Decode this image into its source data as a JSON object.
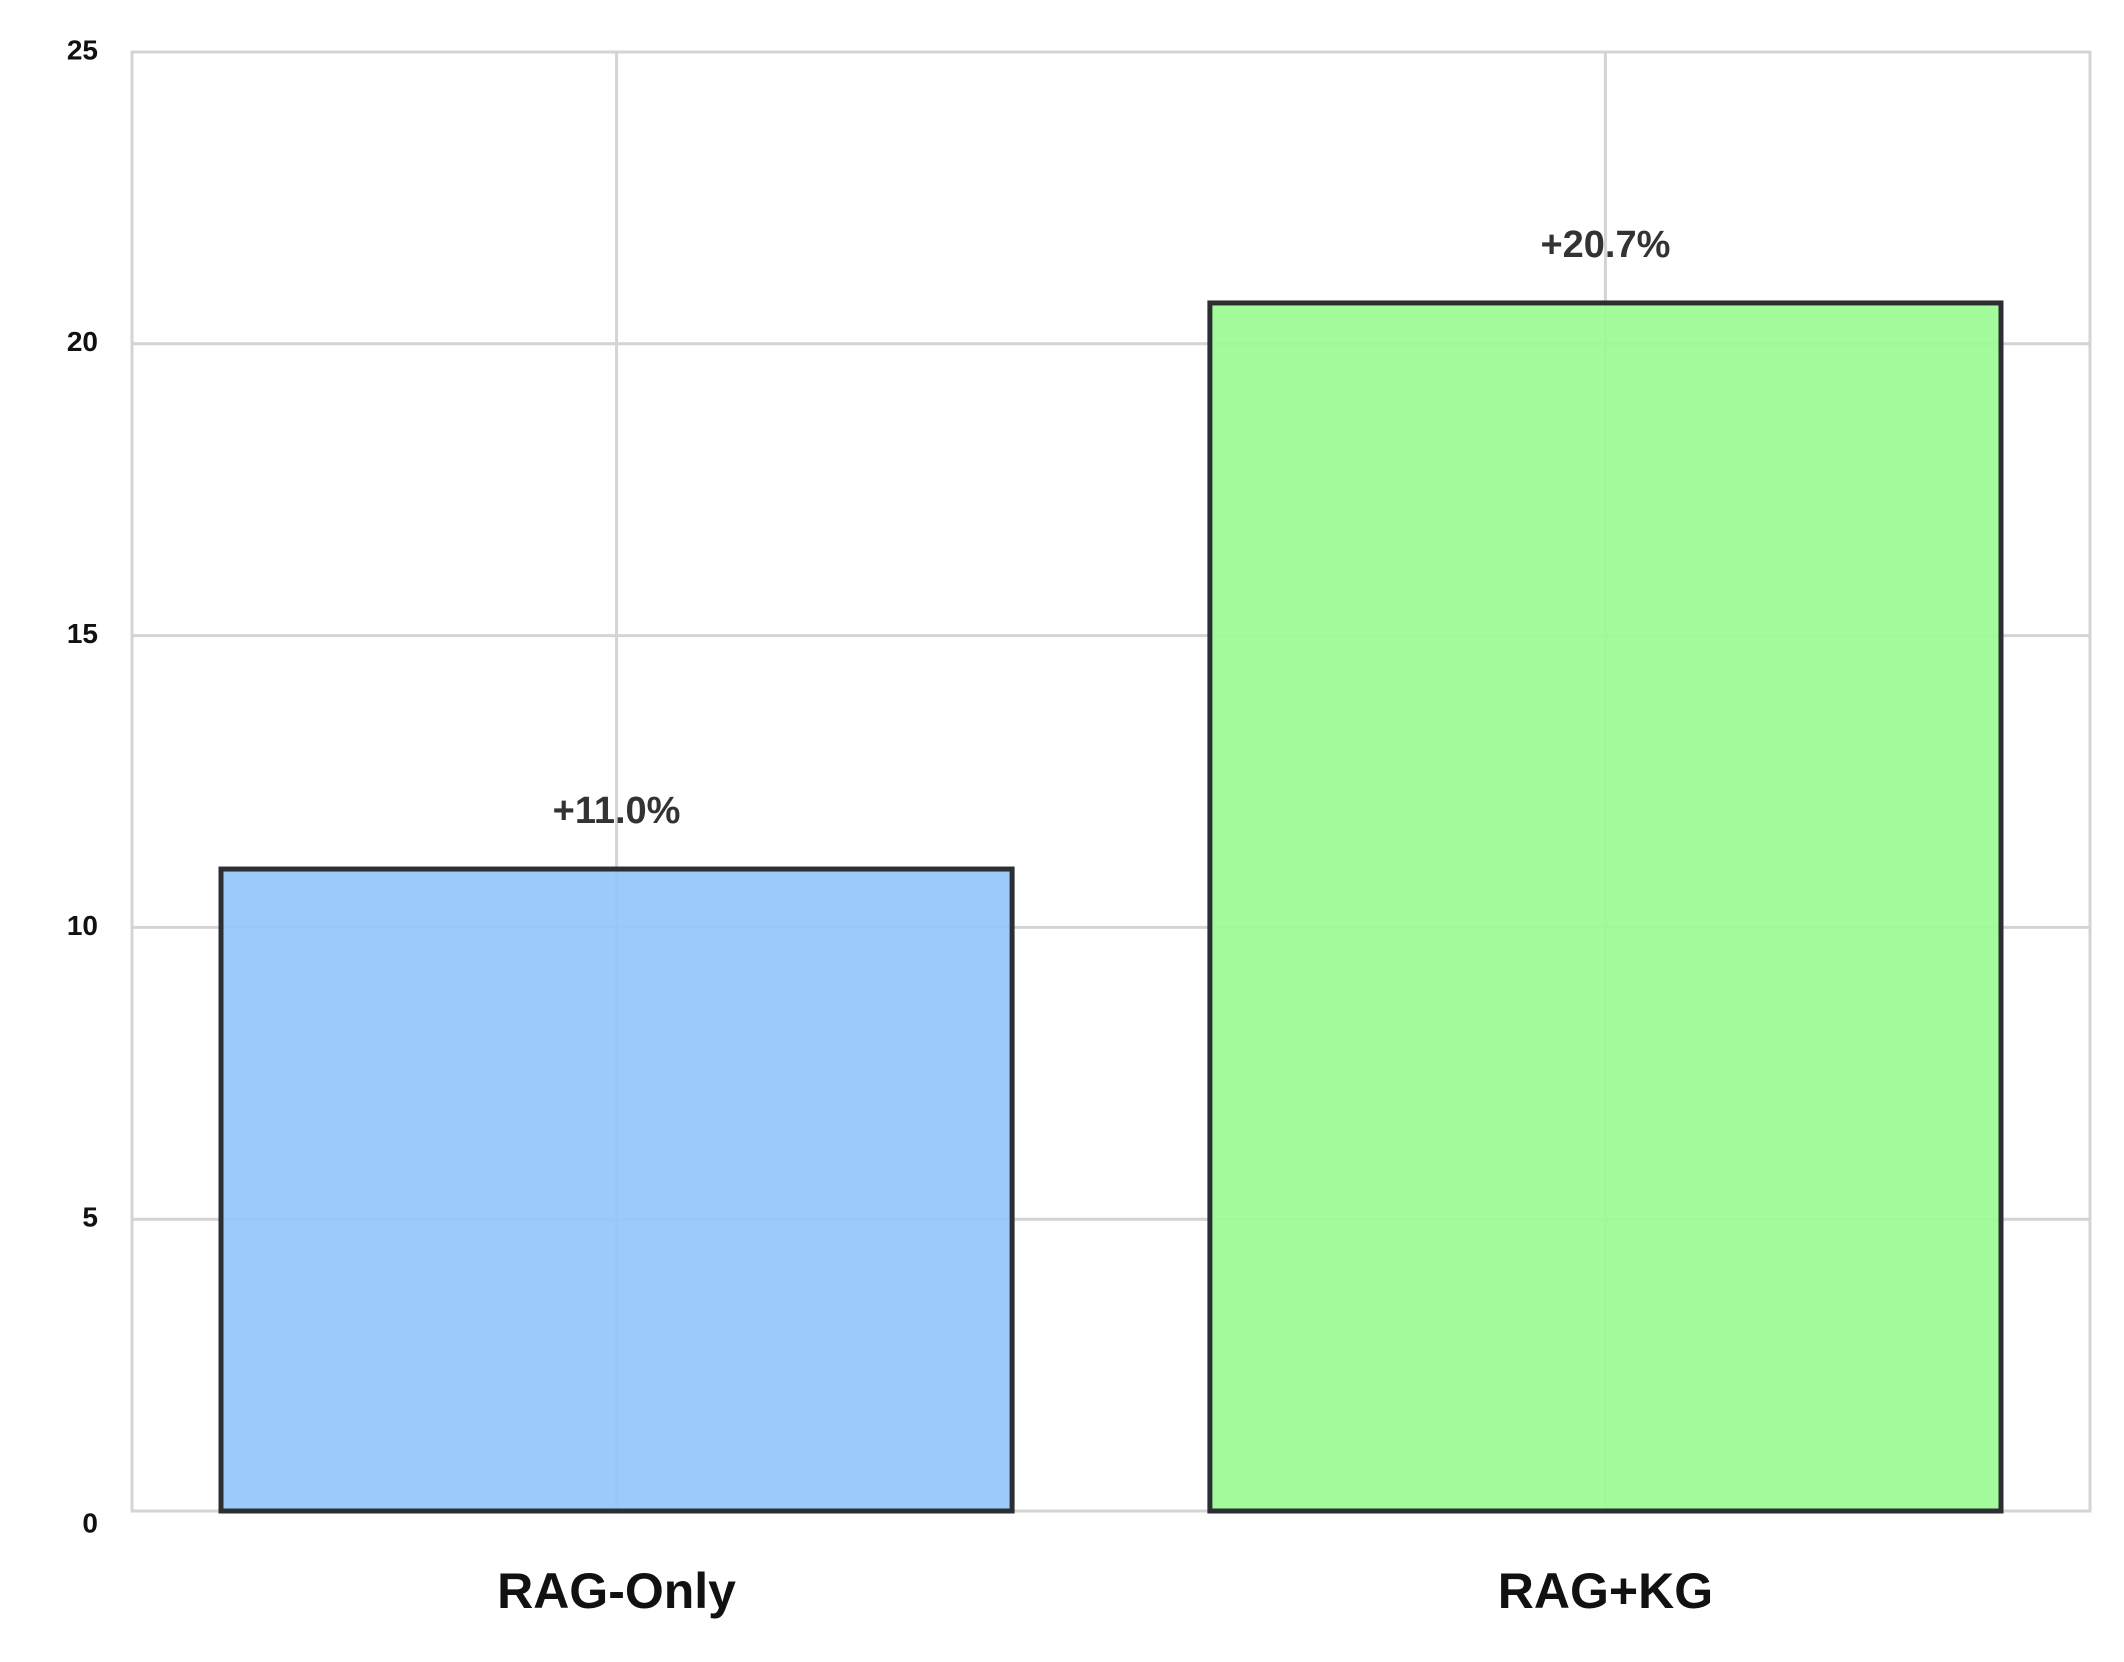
{
  "chart_data": {
    "type": "bar",
    "categories": [
      "RAG-Only",
      "RAG+KG"
    ],
    "values": [
      11.0,
      20.7
    ],
    "value_labels": [
      "+11.0%",
      "+20.7%"
    ],
    "colors": [
      "#94c6fb",
      "#9cfb94"
    ],
    "ylim": [
      0,
      25
    ],
    "yticks": [
      0,
      5,
      10,
      15,
      20,
      25
    ],
    "grid": true
  }
}
